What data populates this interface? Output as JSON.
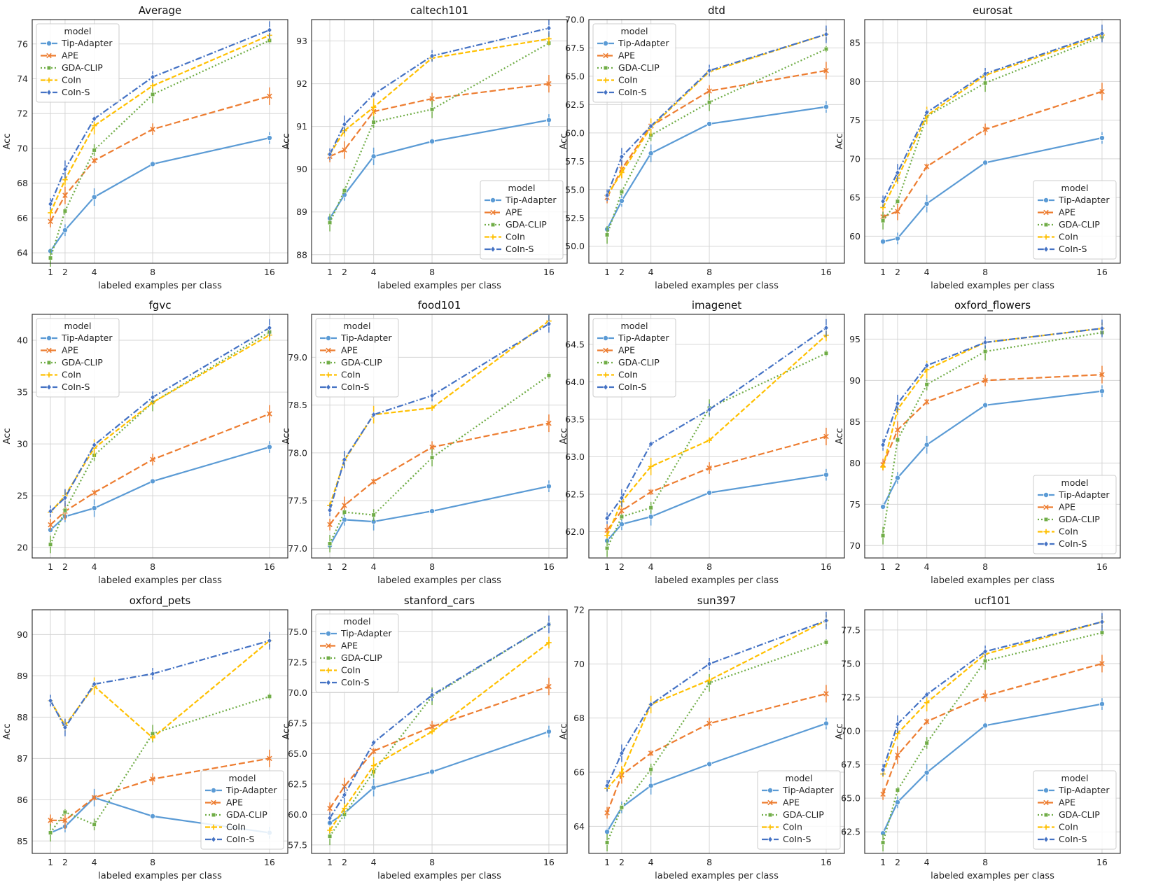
{
  "figure": {
    "background": "#ffffff"
  },
  "series_style": [
    {
      "name": "Tip-Adapter",
      "color": "#5b9bd5",
      "dash": "",
      "marker": "circle"
    },
    {
      "name": "APE",
      "color": "#ed7d31",
      "dash": "9,4",
      "marker": "x"
    },
    {
      "name": "GDA-CLIP",
      "color": "#70ad47",
      "dash": "2,3",
      "marker": "square"
    },
    {
      "name": "CoIn",
      "color": "#ffc000",
      "dash": "7,3",
      "marker": "plus"
    },
    {
      "name": "CoIn-S",
      "color": "#4472c4",
      "dash": "9,3,2,3",
      "marker": "diamond"
    }
  ],
  "chart_data": [
    {
      "type": "line",
      "title": "Average",
      "xlabel": "labeled examples per class",
      "ylabel": "Acc",
      "x": [
        1,
        2,
        4,
        8,
        16
      ],
      "xticks": [
        "1",
        "2",
        "4",
        "8",
        "16"
      ],
      "ylim": [
        63.4,
        77.4
      ],
      "yticks": [
        64,
        66,
        68,
        70,
        72,
        74,
        76
      ],
      "legend": "upper left",
      "legend_title": "model",
      "series": [
        {
          "name": "Tip-Adapter",
          "values": [
            64.1,
            65.3,
            67.2,
            69.1,
            70.6
          ]
        },
        {
          "name": "APE",
          "values": [
            65.8,
            67.3,
            69.3,
            71.1,
            73.0
          ]
        },
        {
          "name": "GDA-CLIP",
          "values": [
            63.7,
            66.4,
            69.9,
            73.1,
            76.2
          ]
        },
        {
          "name": "CoIn",
          "values": [
            66.3,
            68.2,
            71.3,
            73.6,
            76.5
          ]
        },
        {
          "name": "CoIn-S",
          "values": [
            66.8,
            68.8,
            71.7,
            74.1,
            76.8
          ]
        }
      ]
    },
    {
      "type": "line",
      "title": "caltech101",
      "xlabel": "labeled examples per class",
      "ylabel": "Acc",
      "x": [
        1,
        2,
        4,
        8,
        16
      ],
      "xticks": [
        "1",
        "2",
        "4",
        "8",
        "16"
      ],
      "ylim": [
        87.8,
        93.5
      ],
      "yticks": [
        88,
        89,
        90,
        91,
        92,
        93
      ],
      "legend": "lower right",
      "legend_title": "model",
      "series": [
        {
          "name": "Tip-Adapter",
          "values": [
            88.85,
            89.4,
            90.3,
            90.65,
            91.15
          ]
        },
        {
          "name": "APE",
          "values": [
            90.3,
            90.45,
            91.35,
            91.65,
            92.0
          ]
        },
        {
          "name": "GDA-CLIP",
          "values": [
            88.75,
            89.5,
            91.1,
            91.4,
            92.95
          ]
        },
        {
          "name": "CoIn",
          "values": [
            90.35,
            90.9,
            91.45,
            92.6,
            93.05
          ]
        },
        {
          "name": "CoIn-S",
          "values": [
            90.35,
            91.05,
            91.75,
            92.65,
            93.3
          ]
        }
      ]
    },
    {
      "type": "line",
      "title": "dtd",
      "xlabel": "labeled examples per class",
      "ylabel": "Acc",
      "x": [
        1,
        2,
        4,
        8,
        16
      ],
      "xticks": [
        "1",
        "2",
        "4",
        "8",
        "16"
      ],
      "ylim": [
        48.5,
        70.0
      ],
      "yticks": [
        50.0,
        52.5,
        55.0,
        57.5,
        60.0,
        62.5,
        65.0,
        67.5,
        70.0
      ],
      "legend": "upper left",
      "legend_title": "model",
      "series": [
        {
          "name": "Tip-Adapter",
          "values": [
            51.5,
            54.0,
            58.2,
            60.8,
            62.3
          ]
        },
        {
          "name": "APE",
          "values": [
            54.3,
            56.8,
            60.6,
            63.7,
            65.5
          ]
        },
        {
          "name": "GDA-CLIP",
          "values": [
            51.0,
            54.8,
            59.8,
            62.7,
            67.4
          ]
        },
        {
          "name": "CoIn",
          "values": [
            54.5,
            56.5,
            60.5,
            65.4,
            68.7
          ]
        },
        {
          "name": "CoIn-S",
          "values": [
            54.5,
            57.9,
            60.6,
            65.5,
            68.7
          ]
        }
      ]
    },
    {
      "type": "line",
      "title": "eurosat",
      "xlabel": "labeled examples per class",
      "ylabel": "Acc",
      "x": [
        1,
        2,
        4,
        8,
        16
      ],
      "xticks": [
        "1",
        "2",
        "4",
        "8",
        "16"
      ],
      "ylim": [
        56.5,
        88.0
      ],
      "yticks": [
        60,
        65,
        70,
        75,
        80,
        85
      ],
      "legend": "lower right",
      "legend_title": "model",
      "series": [
        {
          "name": "Tip-Adapter",
          "values": [
            59.3,
            59.7,
            64.2,
            69.5,
            72.7
          ]
        },
        {
          "name": "APE",
          "values": [
            62.5,
            63.2,
            69.0,
            73.8,
            78.7
          ]
        },
        {
          "name": "GDA-CLIP",
          "values": [
            62.0,
            64.5,
            75.5,
            79.8,
            85.8
          ]
        },
        {
          "name": "CoIn",
          "values": [
            63.7,
            67.5,
            75.6,
            80.8,
            86.0
          ]
        },
        {
          "name": "CoIn-S",
          "values": [
            64.5,
            68.2,
            76.0,
            81.0,
            86.2
          ]
        }
      ]
    },
    {
      "type": "line",
      "title": "fgvc",
      "xlabel": "labeled examples per class",
      "ylabel": "Acc",
      "x": [
        1,
        2,
        4,
        8,
        16
      ],
      "xticks": [
        "1",
        "2",
        "4",
        "8",
        "16"
      ],
      "ylim": [
        19.0,
        42.5
      ],
      "yticks": [
        20,
        25,
        30,
        35,
        40
      ],
      "legend": "upper left",
      "legend_title": "model",
      "series": [
        {
          "name": "Tip-Adapter",
          "values": [
            21.7,
            23.0,
            23.8,
            26.4,
            29.7
          ]
        },
        {
          "name": "APE",
          "values": [
            22.2,
            23.5,
            25.3,
            28.5,
            32.9
          ]
        },
        {
          "name": "GDA-CLIP",
          "values": [
            20.3,
            23.6,
            28.9,
            34.0,
            40.8
          ]
        },
        {
          "name": "CoIn",
          "values": [
            23.4,
            25.0,
            29.6,
            34.0,
            40.5
          ]
        },
        {
          "name": "CoIn-S",
          "values": [
            23.5,
            24.8,
            29.9,
            34.5,
            41.2
          ]
        }
      ]
    },
    {
      "type": "line",
      "title": "food101",
      "xlabel": "labeled examples per class",
      "ylabel": "Acc",
      "x": [
        1,
        2,
        4,
        8,
        16
      ],
      "xticks": [
        "1",
        "2",
        "4",
        "8",
        "16"
      ],
      "ylim": [
        76.9,
        79.45
      ],
      "yticks": [
        77.0,
        77.5,
        78.0,
        78.5,
        79.0
      ],
      "legend": "upper left",
      "legend_title": "model",
      "series": [
        {
          "name": "Tip-Adapter",
          "values": [
            77.03,
            77.3,
            77.28,
            77.39,
            77.65
          ]
        },
        {
          "name": "APE",
          "values": [
            77.25,
            77.45,
            77.7,
            78.06,
            78.31
          ]
        },
        {
          "name": "GDA-CLIP",
          "values": [
            77.05,
            77.38,
            77.35,
            77.95,
            78.81
          ]
        },
        {
          "name": "CoIn",
          "values": [
            77.45,
            77.92,
            78.4,
            78.47,
            79.38
          ]
        },
        {
          "name": "CoIn-S",
          "values": [
            77.4,
            77.93,
            78.4,
            78.6,
            79.35
          ]
        }
      ]
    },
    {
      "type": "line",
      "title": "imagenet",
      "xlabel": "labeled examples per class",
      "ylabel": "Acc",
      "x": [
        1,
        2,
        4,
        8,
        16
      ],
      "xticks": [
        "1",
        "2",
        "4",
        "8",
        "16"
      ],
      "ylim": [
        61.65,
        64.9
      ],
      "yticks": [
        62.0,
        62.5,
        63.0,
        63.5,
        64.0,
        64.5
      ],
      "legend": "upper left",
      "legend_title": "model",
      "series": [
        {
          "name": "Tip-Adapter",
          "values": [
            61.88,
            62.1,
            62.2,
            62.52,
            62.76
          ]
        },
        {
          "name": "APE",
          "values": [
            62.02,
            62.28,
            62.53,
            62.85,
            63.27
          ]
        },
        {
          "name": "GDA-CLIP",
          "values": [
            61.78,
            62.2,
            62.32,
            63.65,
            64.38
          ]
        },
        {
          "name": "CoIn",
          "values": [
            61.95,
            62.4,
            62.87,
            63.22,
            64.62
          ]
        },
        {
          "name": "CoIn-S",
          "values": [
            62.18,
            62.45,
            63.17,
            63.63,
            64.72
          ]
        }
      ]
    },
    {
      "type": "line",
      "title": "oxford_flowers",
      "xlabel": "labeled examples per class",
      "ylabel": "Acc",
      "x": [
        1,
        2,
        4,
        8,
        16
      ],
      "xticks": [
        "1",
        "2",
        "4",
        "8",
        "16"
      ],
      "ylim": [
        68.5,
        98.0
      ],
      "yticks": [
        70,
        75,
        80,
        85,
        90,
        95
      ],
      "legend": "lower right",
      "legend_title": "model",
      "series": [
        {
          "name": "Tip-Adapter",
          "values": [
            74.7,
            78.2,
            82.2,
            87.0,
            88.7
          ]
        },
        {
          "name": "APE",
          "values": [
            79.8,
            84.0,
            87.4,
            90.0,
            90.7
          ]
        },
        {
          "name": "GDA-CLIP",
          "values": [
            71.2,
            82.8,
            89.5,
            93.5,
            95.8
          ]
        },
        {
          "name": "CoIn",
          "values": [
            79.5,
            86.5,
            91.3,
            94.6,
            96.3
          ]
        },
        {
          "name": "CoIn-S",
          "values": [
            82.2,
            87.2,
            91.8,
            94.6,
            96.3
          ]
        }
      ]
    },
    {
      "type": "line",
      "title": "oxford_pets",
      "xlabel": "labeled examples per class",
      "ylabel": "Acc",
      "x": [
        1,
        2,
        4,
        8,
        16
      ],
      "xticks": [
        "1",
        "2",
        "4",
        "8",
        "16"
      ],
      "ylim": [
        84.7,
        90.6
      ],
      "yticks": [
        85,
        86,
        87,
        88,
        89,
        90
      ],
      "legend": "lower right",
      "legend_title": "model",
      "series": [
        {
          "name": "Tip-Adapter",
          "values": [
            85.2,
            85.35,
            86.05,
            85.6,
            85.2
          ]
        },
        {
          "name": "APE",
          "values": [
            85.5,
            85.5,
            86.05,
            86.5,
            87.0
          ]
        },
        {
          "name": "GDA-CLIP",
          "values": [
            85.2,
            85.7,
            85.4,
            87.6,
            88.5
          ]
        },
        {
          "name": "CoIn",
          "values": [
            88.4,
            87.8,
            88.75,
            87.5,
            89.85
          ]
        },
        {
          "name": "CoIn-S",
          "values": [
            88.4,
            87.75,
            88.8,
            89.05,
            89.85
          ]
        }
      ]
    },
    {
      "type": "line",
      "title": "stanford_cars",
      "xlabel": "labeled examples per class",
      "ylabel": "Acc",
      "x": [
        1,
        2,
        4,
        8,
        16
      ],
      "xticks": [
        "1",
        "2",
        "4",
        "8",
        "16"
      ],
      "ylim": [
        56.8,
        76.8
      ],
      "yticks": [
        57.5,
        60.0,
        62.5,
        65.0,
        67.5,
        70.0,
        72.5,
        75.0
      ],
      "legend": "upper left",
      "legend_title": "model",
      "series": [
        {
          "name": "Tip-Adapter",
          "values": [
            59.3,
            60.1,
            62.2,
            63.5,
            66.8
          ]
        },
        {
          "name": "APE",
          "values": [
            60.5,
            62.3,
            65.2,
            67.2,
            70.5
          ]
        },
        {
          "name": "GDA-CLIP",
          "values": [
            58.2,
            60.0,
            63.5,
            69.7,
            75.6
          ]
        },
        {
          "name": "CoIn",
          "values": [
            58.7,
            60.5,
            64.0,
            66.8,
            74.1
          ]
        },
        {
          "name": "CoIn-S",
          "values": [
            59.7,
            61.6,
            65.9,
            69.8,
            75.6
          ]
        }
      ]
    },
    {
      "type": "line",
      "title": "sun397",
      "xlabel": "labeled examples per class",
      "ylabel": "Acc",
      "x": [
        1,
        2,
        4,
        8,
        16
      ],
      "xticks": [
        "1",
        "2",
        "4",
        "8",
        "16"
      ],
      "ylim": [
        63.0,
        72.0
      ],
      "yticks": [
        64,
        66,
        68,
        70,
        72
      ],
      "legend": "lower right",
      "legend_title": "model",
      "series": [
        {
          "name": "Tip-Adapter",
          "values": [
            63.8,
            64.7,
            65.5,
            66.3,
            67.8
          ]
        },
        {
          "name": "APE",
          "values": [
            64.5,
            65.9,
            66.7,
            67.8,
            68.9
          ]
        },
        {
          "name": "GDA-CLIP",
          "values": [
            63.4,
            64.7,
            66.1,
            69.3,
            70.8
          ]
        },
        {
          "name": "CoIn",
          "values": [
            65.4,
            66.0,
            68.5,
            69.4,
            71.6
          ]
        },
        {
          "name": "CoIn-S",
          "values": [
            65.5,
            66.7,
            68.5,
            70.0,
            71.6
          ]
        }
      ]
    },
    {
      "type": "line",
      "title": "ucf101",
      "xlabel": "labeled examples per class",
      "ylabel": "Acc",
      "x": [
        1,
        2,
        4,
        8,
        16
      ],
      "xticks": [
        "1",
        "2",
        "4",
        "8",
        "16"
      ],
      "ylim": [
        60.9,
        79.0
      ],
      "yticks": [
        62.5,
        65.0,
        67.5,
        70.0,
        72.5,
        75.0,
        77.5
      ],
      "legend": "lower right",
      "legend_title": "model",
      "series": [
        {
          "name": "Tip-Adapter",
          "values": [
            62.4,
            64.7,
            66.9,
            70.4,
            72.0
          ]
        },
        {
          "name": "APE",
          "values": [
            65.3,
            68.2,
            70.7,
            72.6,
            75.0
          ]
        },
        {
          "name": "GDA-CLIP",
          "values": [
            61.7,
            65.6,
            69.1,
            75.2,
            77.3
          ]
        },
        {
          "name": "CoIn",
          "values": [
            66.8,
            69.8,
            72.1,
            75.7,
            78.1
          ]
        },
        {
          "name": "CoIn-S",
          "values": [
            67.1,
            70.5,
            72.7,
            75.9,
            78.1
          ]
        }
      ]
    }
  ]
}
